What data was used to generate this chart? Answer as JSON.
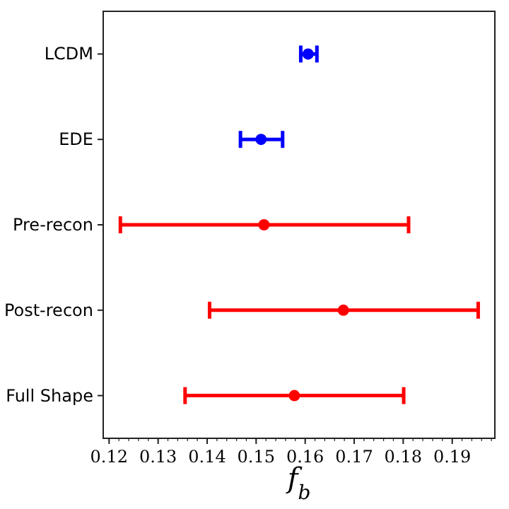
{
  "chart_data": {
    "type": "scatter",
    "orientation": "horizontal",
    "xlabel": "f$_{b}$",
    "categories": [
      "LCDM",
      "EDE",
      "Pre-recon",
      "Post-recon",
      "Full Shape"
    ],
    "values": [
      0.1606,
      0.151,
      0.1516,
      0.1678,
      0.1578
    ],
    "colors": [
      "#0000ff",
      "#0000ff",
      "#ff0000",
      "#ff0000",
      "#ff0000"
    ],
    "errors": [
      [
        0.1591,
        0.1624
      ],
      [
        0.1468,
        0.1554
      ],
      [
        0.1223,
        0.1811
      ],
      [
        0.1405,
        0.1953
      ],
      [
        0.1355,
        0.1801
      ]
    ],
    "xlim": [
      0.1188,
      0.1987
    ],
    "xticks": [
      {
        "value": 0.12,
        "label": "0.12"
      },
      {
        "value": 0.13,
        "label": "0.13"
      },
      {
        "value": 0.14,
        "label": "0.14"
      },
      {
        "value": 0.15,
        "label": "0.15"
      },
      {
        "value": 0.16,
        "label": "0.16"
      },
      {
        "value": 0.17,
        "label": "0.17"
      },
      {
        "value": 0.18,
        "label": "0.18"
      },
      {
        "value": 0.19,
        "label": "0.19"
      }
    ],
    "marker": "circle",
    "grid": false
  }
}
